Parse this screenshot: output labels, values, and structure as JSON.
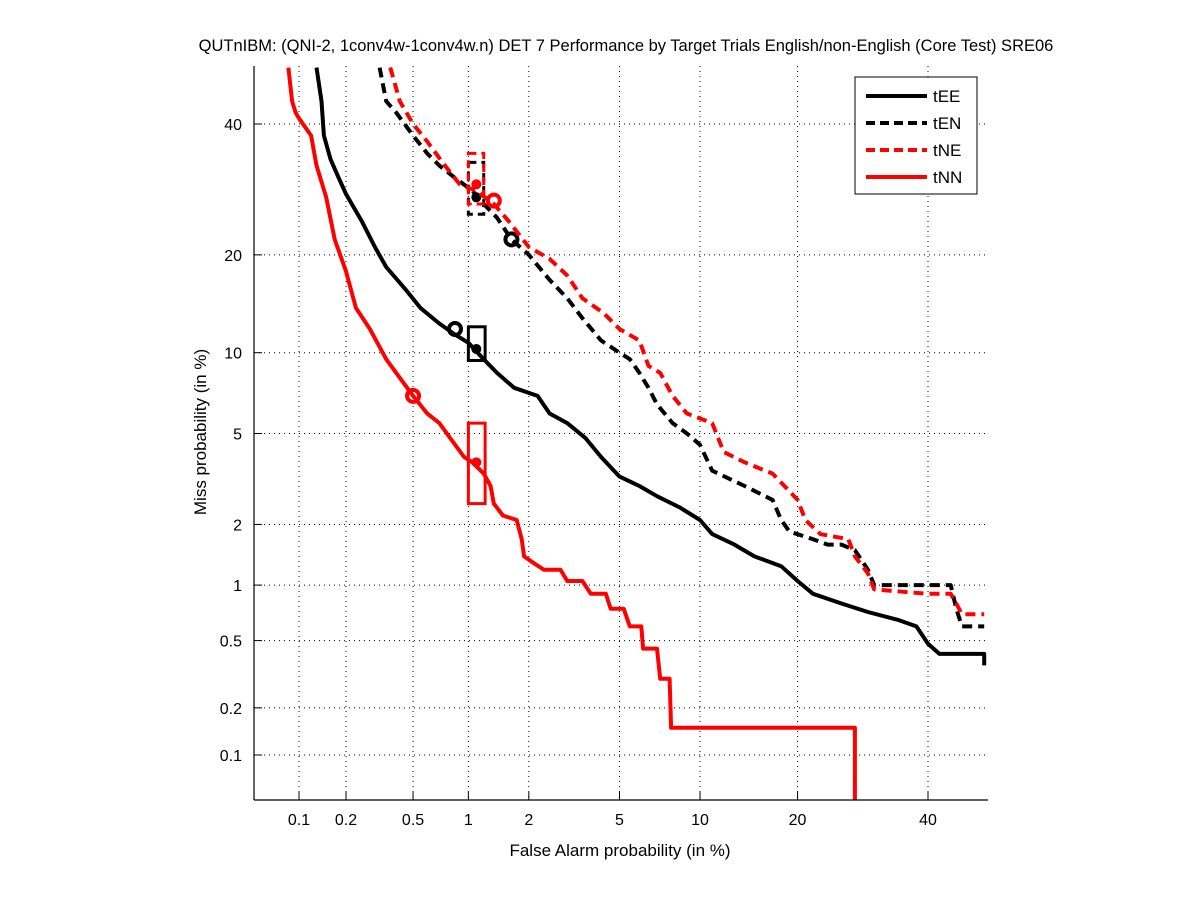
{
  "chart_data": {
    "type": "line",
    "title": "QUTnIBM: (QNI-2, 1conv4w-1conv4w.n) DET 7 Performance by Target Trials English/non-English (Core Test) SRE06",
    "xlabel": "False Alarm probability (in %)",
    "ylabel": "Miss probability (in %)",
    "xscale": "normal-deviate",
    "yscale": "normal-deviate",
    "xlim": [
      0.05,
      50
    ],
    "ylim": [
      0.05,
      50
    ],
    "xticks": [
      0.1,
      0.2,
      0.5,
      1,
      2,
      5,
      10,
      20,
      40
    ],
    "xtick_labels": [
      "0.1",
      "0.2",
      "0.5",
      "1",
      "2",
      "5",
      "10",
      "20",
      "40"
    ],
    "yticks": [
      0.1,
      0.2,
      0.5,
      1,
      2,
      5,
      10,
      20,
      40
    ],
    "ytick_labels": [
      "0.1",
      "0.2",
      "0.5",
      "1",
      "2",
      "5",
      "10",
      "20",
      "40"
    ],
    "grid": true,
    "legend_position": "top-right",
    "series": [
      {
        "name": "tEE",
        "color": "#000000",
        "dash": false,
        "points": [
          [
            0.13,
            50
          ],
          [
            0.14,
            44
          ],
          [
            0.145,
            38
          ],
          [
            0.16,
            34
          ],
          [
            0.18,
            31
          ],
          [
            0.2,
            28.5
          ],
          [
            0.25,
            24.5
          ],
          [
            0.3,
            21
          ],
          [
            0.35,
            18.5
          ],
          [
            0.45,
            16
          ],
          [
            0.55,
            14
          ],
          [
            0.7,
            12.5
          ],
          [
            0.85,
            11.5
          ],
          [
            1.0,
            10.8
          ],
          [
            1.2,
            9.5
          ],
          [
            1.4,
            8.5
          ],
          [
            1.7,
            7.5
          ],
          [
            2.2,
            7
          ],
          [
            2.5,
            6
          ],
          [
            3,
            5.5
          ],
          [
            3.6,
            4.8
          ],
          [
            4.2,
            4
          ],
          [
            5,
            3.3
          ],
          [
            6,
            3
          ],
          [
            7,
            2.7
          ],
          [
            8.5,
            2.4
          ],
          [
            10,
            2.1
          ],
          [
            11,
            1.8
          ],
          [
            13,
            1.6
          ],
          [
            15,
            1.4
          ],
          [
            18,
            1.25
          ],
          [
            20,
            1.05
          ],
          [
            22,
            0.9
          ],
          [
            26,
            0.8
          ],
          [
            30,
            0.72
          ],
          [
            35,
            0.65
          ],
          [
            38,
            0.6
          ],
          [
            40,
            0.48
          ],
          [
            42,
            0.42
          ],
          [
            50,
            0.42
          ],
          [
            50,
            0.36
          ]
        ],
        "min_dcf": [
          0.85,
          12
        ],
        "act_dcf": [
          1.1,
          10.3
        ],
        "act_dcf_box": [
          [
            1.0,
            9.4
          ],
          [
            1.22,
            12.2
          ]
        ]
      },
      {
        "name": "tEN",
        "color": "#000000",
        "dash": true,
        "points": [
          [
            0.32,
            50
          ],
          [
            0.35,
            44
          ],
          [
            0.4,
            42
          ],
          [
            0.5,
            38
          ],
          [
            0.6,
            35
          ],
          [
            0.7,
            33
          ],
          [
            0.85,
            31
          ],
          [
            1.05,
            29
          ],
          [
            1.2,
            27
          ],
          [
            1.4,
            25
          ],
          [
            1.65,
            22
          ],
          [
            2,
            20
          ],
          [
            2.5,
            17
          ],
          [
            3,
            15
          ],
          [
            3.5,
            13
          ],
          [
            4.2,
            11
          ],
          [
            5,
            10
          ],
          [
            5.5,
            9.5
          ],
          [
            6,
            8.5
          ],
          [
            6.5,
            7.5
          ],
          [
            7,
            6.5
          ],
          [
            8,
            5.5
          ],
          [
            9,
            5
          ],
          [
            10,
            4.5
          ],
          [
            11,
            3.5
          ],
          [
            14,
            3
          ],
          [
            17,
            2.6
          ],
          [
            18,
            2.1
          ],
          [
            19,
            1.85
          ],
          [
            22,
            1.7
          ],
          [
            24,
            1.6
          ],
          [
            26,
            1.6
          ],
          [
            28,
            1.5
          ],
          [
            30,
            1.2
          ],
          [
            31,
            1
          ],
          [
            40,
            1
          ],
          [
            44,
            1
          ],
          [
            45,
            0.75
          ],
          [
            46,
            0.6
          ],
          [
            50,
            0.6
          ]
        ],
        "min_dcf": [
          1.65,
          22
        ],
        "act_dcf": [
          1.1,
          28
        ],
        "act_dcf_box": [
          [
            1.0,
            25.5
          ],
          [
            1.2,
            33.5
          ]
        ]
      },
      {
        "name": "tNE",
        "color": "#ff0000",
        "dash": true,
        "points": [
          [
            0.37,
            50
          ],
          [
            0.42,
            44
          ],
          [
            0.5,
            40
          ],
          [
            0.6,
            37
          ],
          [
            0.75,
            33
          ],
          [
            0.9,
            30
          ],
          [
            1.1,
            29
          ],
          [
            1.35,
            27
          ],
          [
            1.6,
            24.5
          ],
          [
            2,
            21
          ],
          [
            2.5,
            19.5
          ],
          [
            3,
            17.5
          ],
          [
            3.5,
            15
          ],
          [
            4.3,
            13.5
          ],
          [
            5,
            12
          ],
          [
            6,
            11
          ],
          [
            6.5,
            9
          ],
          [
            7.2,
            8.5
          ],
          [
            8,
            7
          ],
          [
            9,
            6
          ],
          [
            11,
            5.5
          ],
          [
            12,
            4.2
          ],
          [
            14,
            3.8
          ],
          [
            17,
            3.4
          ],
          [
            20,
            2.6
          ],
          [
            21,
            2.1
          ],
          [
            23,
            1.8
          ],
          [
            27,
            1.7
          ],
          [
            28,
            1.4
          ],
          [
            30,
            1.15
          ],
          [
            31,
            0.95
          ],
          [
            40,
            0.9
          ],
          [
            44,
            0.9
          ],
          [
            45,
            0.8
          ],
          [
            46,
            0.7
          ],
          [
            50,
            0.7
          ]
        ],
        "min_dcf": [
          1.35,
          27.5
        ],
        "act_dcf": [
          1.1,
          30
        ],
        "act_dcf_box": [
          [
            1.0,
            27
          ],
          [
            1.2,
            35
          ]
        ]
      },
      {
        "name": "tNN",
        "color": "#ff0000",
        "dash": false,
        "points": [
          [
            0.085,
            50
          ],
          [
            0.09,
            44
          ],
          [
            0.095,
            42
          ],
          [
            0.1,
            41
          ],
          [
            0.12,
            38
          ],
          [
            0.13,
            33
          ],
          [
            0.15,
            28
          ],
          [
            0.17,
            22
          ],
          [
            0.2,
            18
          ],
          [
            0.23,
            14
          ],
          [
            0.28,
            12
          ],
          [
            0.35,
            9.5
          ],
          [
            0.4,
            8.5
          ],
          [
            0.5,
            7
          ],
          [
            0.6,
            6
          ],
          [
            0.7,
            5.5
          ],
          [
            0.8,
            4.8
          ],
          [
            0.95,
            4
          ],
          [
            1.05,
            3.8
          ],
          [
            1.2,
            3.4
          ],
          [
            1.3,
            3
          ],
          [
            1.35,
            2.5
          ],
          [
            1.5,
            2.2
          ],
          [
            1.75,
            2.1
          ],
          [
            1.85,
            1.7
          ],
          [
            1.9,
            1.4
          ],
          [
            2.1,
            1.3
          ],
          [
            2.35,
            1.2
          ],
          [
            2.8,
            1.2
          ],
          [
            3,
            1.05
          ],
          [
            3.5,
            1.05
          ],
          [
            3.8,
            0.9
          ],
          [
            4.4,
            0.9
          ],
          [
            4.6,
            0.75
          ],
          [
            5.2,
            0.75
          ],
          [
            5.5,
            0.6
          ],
          [
            6.1,
            0.6
          ],
          [
            6.2,
            0.45
          ],
          [
            7,
            0.45
          ],
          [
            7.2,
            0.3
          ],
          [
            7.8,
            0.3
          ],
          [
            7.9,
            0.15
          ],
          [
            28,
            0.15
          ],
          [
            28,
            0.05
          ]
        ],
        "min_dcf": [
          0.5,
          7
        ],
        "act_dcf": [
          1.1,
          3.8
        ],
        "act_dcf_box": [
          [
            1.0,
            2.5
          ],
          [
            1.22,
            5.5
          ]
        ]
      }
    ]
  }
}
